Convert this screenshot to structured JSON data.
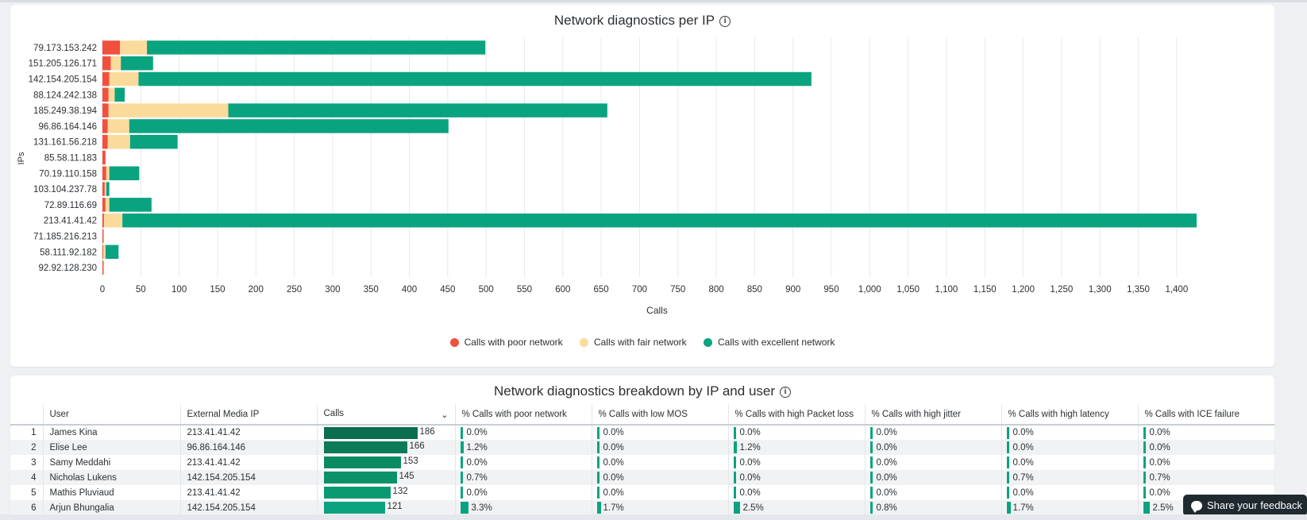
{
  "chart": {
    "title": "Network diagnostics per IP",
    "xlabel": "Calls",
    "ylabel": "IPs",
    "legend": {
      "poor": "Calls with poor network",
      "fair": "Calls with fair network",
      "excellent": "Calls with excellent network"
    },
    "colors": {
      "poor": "#f2503f",
      "fair": "#fbdb9b",
      "excellent": "#0aa37f"
    }
  },
  "chart_data": {
    "type": "bar",
    "orientation": "horizontal",
    "stacked": true,
    "title": "Network diagnostics per IP",
    "xlabel": "Calls",
    "ylabel": "IPs",
    "xlim": [
      0,
      1425
    ],
    "xticks": [
      0,
      50,
      100,
      150,
      200,
      250,
      300,
      350,
      400,
      450,
      500,
      550,
      600,
      650,
      700,
      750,
      800,
      850,
      900,
      950,
      1000,
      1050,
      1100,
      1150,
      1200,
      1250,
      1300,
      1350,
      1400
    ],
    "xtick_labels": [
      "0",
      "50",
      "100",
      "150",
      "200",
      "250",
      "300",
      "350",
      "400",
      "450",
      "500",
      "550",
      "600",
      "650",
      "700",
      "750",
      "800",
      "850",
      "900",
      "950",
      "1,000",
      "1,050",
      "1,100",
      "1,150",
      "1,200",
      "1,250",
      "1,300",
      "1,350",
      "1,400"
    ],
    "grid": true,
    "legend_position": "bottom",
    "categories": [
      "79.173.153.242",
      "151.205.126.171",
      "142.154.205.154",
      "88.124.242.138",
      "185.249.38.194",
      "96.86.164.146",
      "131.161.56.218",
      "85.58.11.183",
      "70.19.110.158",
      "103.104.237.78",
      "72.89.116.69",
      "213.41.41.42",
      "71.185.216.213",
      "58.111.92.182",
      "92.92.128.230"
    ],
    "series": [
      {
        "name": "Calls with poor network",
        "values": [
          23,
          11,
          9,
          8,
          8,
          7,
          7,
          4,
          5,
          3,
          4,
          2,
          1,
          1,
          1
        ]
      },
      {
        "name": "Calls with fair network",
        "values": [
          35,
          13,
          38,
          8,
          156,
          28,
          29,
          0,
          4,
          2,
          5,
          24,
          0,
          3,
          0
        ]
      },
      {
        "name": "Calls with excellent network",
        "values": [
          441,
          42,
          877,
          13,
          494,
          416,
          62,
          0,
          39,
          4,
          55,
          1400,
          0,
          17,
          0
        ]
      }
    ]
  },
  "table": {
    "title": "Network diagnostics breakdown by IP and user",
    "columns": [
      "",
      "User",
      "External Media IP",
      "Calls",
      "% Calls with poor network",
      "% Calls with low MOS",
      "% Calls with high Packet loss",
      "% Calls with high jitter",
      "% Calls with high latency",
      "% Calls with ICE failure"
    ],
    "rows": [
      {
        "n": "1",
        "user": "James Kina",
        "ip": "213.41.41.42",
        "calls": "186",
        "poor": "0.0%",
        "mos": "0.0%",
        "loss": "0.0%",
        "jitter": "0.0%",
        "latency": "0.0%",
        "ice": "0.0%"
      },
      {
        "n": "2",
        "user": "Elise Lee",
        "ip": "96.86.164.146",
        "calls": "166",
        "poor": "1.2%",
        "mos": "0.0%",
        "loss": "1.2%",
        "jitter": "0.0%",
        "latency": "0.0%",
        "ice": "0.0%"
      },
      {
        "n": "3",
        "user": "Samy Meddahi",
        "ip": "213.41.41.42",
        "calls": "153",
        "poor": "0.0%",
        "mos": "0.0%",
        "loss": "0.0%",
        "jitter": "0.0%",
        "latency": "0.0%",
        "ice": "0.0%"
      },
      {
        "n": "4",
        "user": "Nicholas Lukens",
        "ip": "142.154.205.154",
        "calls": "145",
        "poor": "0.7%",
        "mos": "0.0%",
        "loss": "0.0%",
        "jitter": "0.0%",
        "latency": "0.7%",
        "ice": "0.7%"
      },
      {
        "n": "5",
        "user": "Mathis Pluviaud",
        "ip": "213.41.41.42",
        "calls": "132",
        "poor": "0.0%",
        "mos": "0.0%",
        "loss": "0.0%",
        "jitter": "0.0%",
        "latency": "0.0%",
        "ice": "0.0%"
      },
      {
        "n": "6",
        "user": "Arjun Bhungalia",
        "ip": "142.154.205.154",
        "calls": "121",
        "poor": "3.3%",
        "mos": "1.7%",
        "loss": "2.5%",
        "jitter": "0.8%",
        "latency": "1.7%",
        "ice": "2.5%"
      }
    ],
    "calls_max": 186,
    "bar_colors": [
      "#0b6e4f",
      "#0b7a58",
      "#0a8a63",
      "#0a9169",
      "#0a9a72",
      "#0aa37f"
    ]
  },
  "feedback": {
    "label": "Share your feedback",
    "icon": "chat-bubble-icon"
  }
}
